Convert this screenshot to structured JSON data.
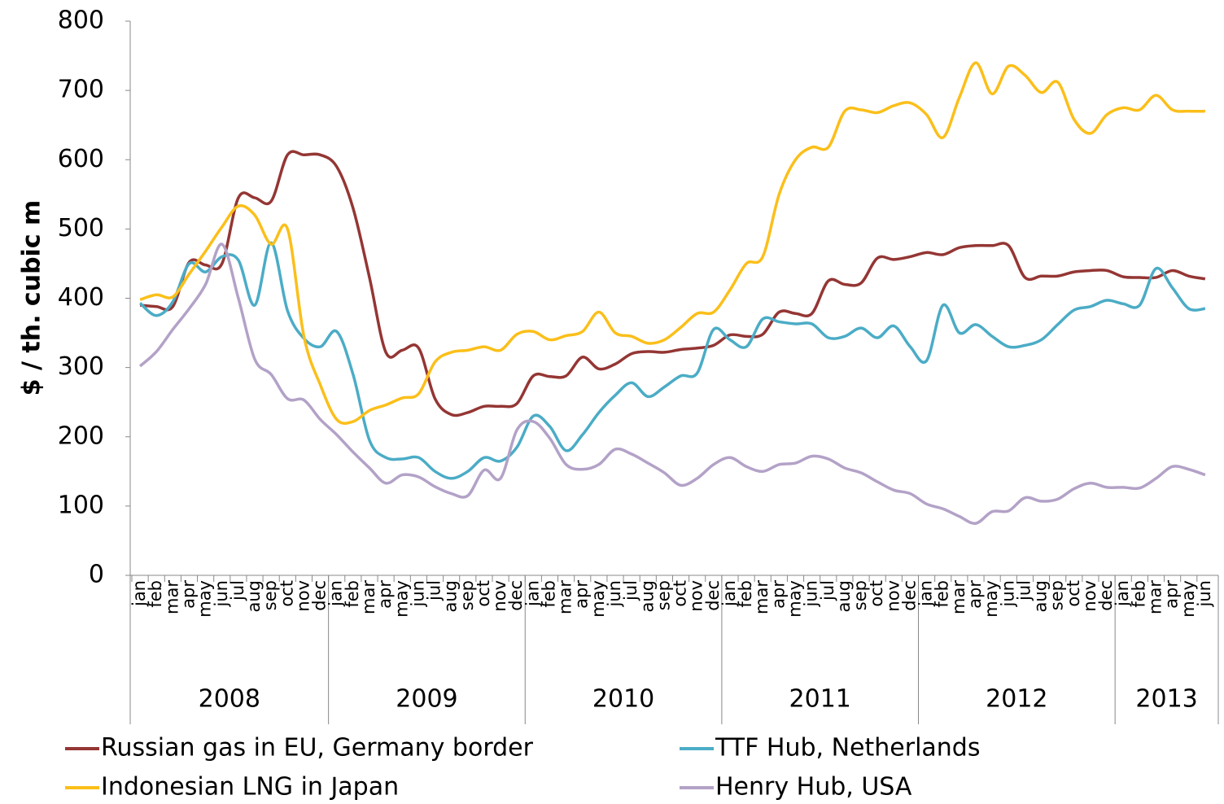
{
  "chart_data": {
    "type": "line",
    "ylabel": "$ / th. cubic m",
    "groups": [
      {
        "label": "2008",
        "months": [
          "jan",
          "feb",
          "mar",
          "apr",
          "may",
          "jun",
          "jul",
          "aug",
          "sep",
          "oct",
          "nov",
          "dec"
        ]
      },
      {
        "label": "2009",
        "months": [
          "jan",
          "feb",
          "mar",
          "apr",
          "may",
          "jun",
          "jul",
          "aug",
          "sep",
          "oct",
          "nov",
          "dec"
        ]
      },
      {
        "label": "2010",
        "months": [
          "jan",
          "feb",
          "mar",
          "apr",
          "may",
          "jun",
          "jul",
          "aug",
          "sep",
          "oct",
          "nov",
          "dec"
        ]
      },
      {
        "label": "2011",
        "months": [
          "jan",
          "feb",
          "mar",
          "apr",
          "may",
          "jun",
          "jul",
          "aug",
          "sep",
          "oct",
          "nov",
          "dec"
        ]
      },
      {
        "label": "2012",
        "months": [
          "jan",
          "feb",
          "mar",
          "apr",
          "may",
          "jun",
          "jul",
          "aug",
          "sep",
          "oct",
          "nov",
          "dec"
        ]
      },
      {
        "label": "2013",
        "months": [
          "jan",
          "feb",
          "mar",
          "apr",
          "may",
          "jun"
        ]
      }
    ],
    "ylim": [
      0,
      800
    ],
    "yticks": [
      0,
      100,
      200,
      300,
      400,
      500,
      600,
      700,
      800
    ],
    "series": [
      {
        "name": "Russian gas in EU, Germany border",
        "color": "#943634",
        "values": [
          390,
          388,
          388,
          452,
          448,
          450,
          545,
          545,
          540,
          607,
          607,
          607,
          590,
          530,
          430,
          322,
          325,
          328,
          255,
          232,
          235,
          244,
          244,
          248,
          288,
          287,
          288,
          315,
          298,
          305,
          320,
          323,
          322,
          326,
          328,
          332,
          347,
          345,
          348,
          380,
          378,
          378,
          425,
          420,
          422,
          458,
          456,
          460,
          466,
          463,
          473,
          476,
          476,
          476,
          430,
          432,
          432,
          438,
          440,
          440,
          431,
          430,
          430,
          440,
          432,
          428
        ]
      },
      {
        "name": "TTF Hub, Netherlands",
        "color": "#4bacc6",
        "values": [
          393,
          375,
          395,
          450,
          438,
          460,
          455,
          390,
          480,
          382,
          342,
          330,
          352,
          290,
          195,
          170,
          168,
          170,
          150,
          140,
          150,
          170,
          165,
          185,
          230,
          215,
          180,
          203,
          235,
          260,
          278,
          258,
          272,
          288,
          292,
          355,
          340,
          330,
          370,
          366,
          363,
          363,
          343,
          345,
          357,
          343,
          360,
          330,
          310,
          390,
          350,
          362,
          345,
          330,
          332,
          340,
          362,
          383,
          388,
          397,
          392,
          390,
          443,
          415,
          385,
          385
        ]
      },
      {
        "name": "Indonesian LNG in Japan",
        "color": "#fbbf1a",
        "values": [
          398,
          405,
          402,
          435,
          468,
          503,
          533,
          520,
          478,
          500,
          345,
          275,
          225,
          222,
          238,
          246,
          256,
          262,
          308,
          322,
          325,
          330,
          325,
          348,
          352,
          340,
          346,
          352,
          380,
          350,
          345,
          335,
          340,
          358,
          378,
          380,
          412,
          450,
          460,
          550,
          600,
          618,
          618,
          670,
          672,
          668,
          678,
          682,
          665,
          632,
          690,
          740,
          695,
          735,
          722,
          697,
          712,
          658,
          638,
          665,
          675,
          672,
          693,
          672,
          670,
          670
        ]
      },
      {
        "name": "Henry Hub, USA",
        "color": "#b3a2c7",
        "values": [
          302,
          323,
          355,
          385,
          420,
          478,
          400,
          312,
          290,
          255,
          253,
          225,
          203,
          178,
          155,
          133,
          145,
          142,
          128,
          118,
          115,
          152,
          140,
          210,
          222,
          198,
          160,
          153,
          160,
          182,
          175,
          162,
          148,
          130,
          140,
          160,
          170,
          157,
          150,
          160,
          162,
          172,
          168,
          155,
          148,
          135,
          123,
          118,
          103,
          96,
          85,
          75,
          92,
          93,
          112,
          107,
          110,
          125,
          133,
          127,
          127,
          126,
          140,
          157,
          153,
          145
        ]
      }
    ]
  }
}
